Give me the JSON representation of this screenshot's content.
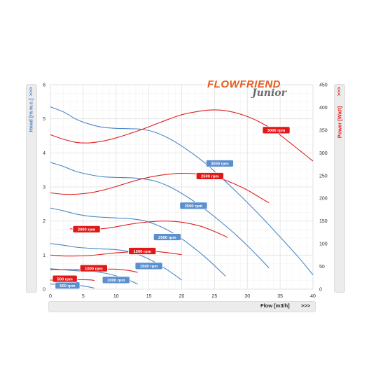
{
  "logo": {
    "line1": "FLOWFRIEND",
    "line2": "Junior",
    "brand_color": "#e85a1a"
  },
  "labels": {
    "y_left": "Head [m.w.c.]",
    "y_left_arrow": ">>>",
    "y_right": "Power [Watt]",
    "y_right_arrow": ">>>",
    "x": "Flow [m3/h]",
    "x_arrow": ">>>"
  },
  "colors": {
    "head": "#4a86c8",
    "power": "#e02020",
    "grid": "#e2e2e2"
  },
  "chart_data": {
    "type": "line",
    "xlabel": "Flow [m3/h]",
    "ylabel": "Head [m.w.c.]",
    "y2label": "Power [Watt]",
    "xlim": [
      0,
      40
    ],
    "ylim": [
      0,
      6
    ],
    "y2lim": [
      0,
      450
    ],
    "xticks": [
      0,
      5,
      10,
      15,
      20,
      25,
      30,
      35,
      40
    ],
    "yticks": [
      0,
      1,
      2,
      3,
      4,
      5,
      6
    ],
    "y2ticks": [
      0,
      50,
      100,
      150,
      200,
      250,
      300,
      350,
      400,
      450
    ],
    "grid": true,
    "head_series": [
      {
        "name": "3000 rpm",
        "points": [
          [
            0,
            5.35
          ],
          [
            2,
            5.2
          ],
          [
            4,
            4.98
          ],
          [
            6,
            4.84
          ],
          [
            8,
            4.75
          ],
          [
            10,
            4.72
          ],
          [
            12,
            4.71
          ],
          [
            14,
            4.69
          ],
          [
            16,
            4.6
          ],
          [
            18,
            4.43
          ],
          [
            20,
            4.2
          ],
          [
            22,
            3.93
          ],
          [
            24,
            3.63
          ],
          [
            26,
            3.28
          ],
          [
            28,
            2.92
          ],
          [
            30,
            2.54
          ],
          [
            32,
            2.15
          ],
          [
            34,
            1.74
          ],
          [
            36,
            1.32
          ],
          [
            38,
            0.89
          ],
          [
            40,
            0.42
          ]
        ]
      },
      {
        "name": "2500 rpm",
        "points": [
          [
            0,
            3.72
          ],
          [
            2,
            3.6
          ],
          [
            4,
            3.45
          ],
          [
            6,
            3.36
          ],
          [
            8,
            3.3
          ],
          [
            10,
            3.28
          ],
          [
            12,
            3.27
          ],
          [
            14,
            3.24
          ],
          [
            16,
            3.17
          ],
          [
            18,
            3.02
          ],
          [
            20,
            2.81
          ],
          [
            22,
            2.56
          ],
          [
            24,
            2.28
          ],
          [
            26,
            1.97
          ],
          [
            28,
            1.64
          ],
          [
            30,
            1.28
          ],
          [
            32,
            0.89
          ],
          [
            33.3,
            0.62
          ]
        ]
      },
      {
        "name": "2000 rpm",
        "points": [
          [
            0,
            2.38
          ],
          [
            2,
            2.3
          ],
          [
            4,
            2.2
          ],
          [
            6,
            2.14
          ],
          [
            8,
            2.11
          ],
          [
            10,
            2.09
          ],
          [
            12,
            2.07
          ],
          [
            14,
            2.02
          ],
          [
            16,
            1.9
          ],
          [
            18,
            1.72
          ],
          [
            20,
            1.48
          ],
          [
            22,
            1.19
          ],
          [
            24,
            0.87
          ],
          [
            26.7,
            0.38
          ]
        ]
      },
      {
        "name": "1500 rpm",
        "points": [
          [
            0,
            1.34
          ],
          [
            2,
            1.29
          ],
          [
            4,
            1.23
          ],
          [
            6,
            1.2
          ],
          [
            8,
            1.18
          ],
          [
            10,
            1.16
          ],
          [
            12,
            1.1
          ],
          [
            14,
            0.97
          ],
          [
            16,
            0.78
          ],
          [
            18,
            0.54
          ],
          [
            20,
            0.27
          ]
        ]
      },
      {
        "name": "1000 rpm",
        "points": [
          [
            0,
            0.6
          ],
          [
            2,
            0.57
          ],
          [
            4,
            0.54
          ],
          [
            6,
            0.52
          ],
          [
            8,
            0.48
          ],
          [
            10,
            0.39
          ],
          [
            12,
            0.26
          ],
          [
            13.3,
            0.15
          ]
        ]
      },
      {
        "name": "500 rpm",
        "points": [
          [
            0,
            0.15
          ],
          [
            2,
            0.14
          ],
          [
            4,
            0.12
          ],
          [
            6,
            0.06
          ],
          [
            6.7,
            0.03
          ]
        ]
      }
    ],
    "power_series": [
      {
        "name": "3000 rpm",
        "points": [
          [
            0,
            340
          ],
          [
            2,
            330
          ],
          [
            4,
            323
          ],
          [
            6,
            322
          ],
          [
            8,
            326
          ],
          [
            10,
            333
          ],
          [
            12,
            342
          ],
          [
            14,
            352
          ],
          [
            16,
            363
          ],
          [
            18,
            374
          ],
          [
            20,
            384
          ],
          [
            22,
            390
          ],
          [
            24,
            394
          ],
          [
            26,
            394
          ],
          [
            28,
            389
          ],
          [
            30,
            380
          ],
          [
            32,
            367
          ],
          [
            34,
            350
          ],
          [
            36,
            328
          ],
          [
            38,
            305
          ],
          [
            40,
            282
          ]
        ]
      },
      {
        "name": "2500 rpm",
        "points": [
          [
            0,
            212
          ],
          [
            2,
            209
          ],
          [
            4,
            209
          ],
          [
            6,
            212
          ],
          [
            8,
            218
          ],
          [
            10,
            226
          ],
          [
            12,
            235
          ],
          [
            14,
            243
          ],
          [
            16,
            249
          ],
          [
            18,
            253
          ],
          [
            20,
            255
          ],
          [
            22,
            254
          ],
          [
            24,
            250
          ],
          [
            26,
            243
          ],
          [
            28,
            232
          ],
          [
            30,
            218
          ],
          [
            32,
            201
          ],
          [
            33.3,
            190
          ]
        ]
      },
      {
        "name": "2000 rpm",
        "points": [
          [
            3,
            133
          ],
          [
            5,
            131
          ],
          [
            7,
            132
          ],
          [
            9,
            135
          ],
          [
            11,
            140
          ],
          [
            13,
            145
          ],
          [
            15,
            148
          ],
          [
            17,
            150
          ],
          [
            19,
            149
          ],
          [
            21,
            145
          ],
          [
            23,
            138
          ],
          [
            25,
            127
          ],
          [
            27,
            114
          ]
        ]
      },
      {
        "name": "1500 rpm",
        "points": [
          [
            0,
            75
          ],
          [
            2,
            73
          ],
          [
            4,
            73
          ],
          [
            6,
            74
          ],
          [
            8,
            77
          ],
          [
            10,
            80
          ],
          [
            12,
            82
          ],
          [
            14,
            83
          ],
          [
            16,
            83
          ],
          [
            18,
            80
          ],
          [
            20,
            76
          ]
        ]
      },
      {
        "name": "1000 rpm",
        "points": [
          [
            0,
            43
          ],
          [
            2,
            43
          ],
          [
            4,
            43
          ],
          [
            6,
            43.5
          ],
          [
            8,
            44
          ],
          [
            10,
            44
          ],
          [
            12,
            41
          ],
          [
            13.3,
            37
          ]
        ]
      },
      {
        "name": "500 rpm",
        "points": [
          [
            0,
            20
          ],
          [
            2,
            20.5
          ],
          [
            4,
            21
          ],
          [
            6,
            20.5
          ],
          [
            6.7,
            19
          ]
        ]
      }
    ],
    "head_labels": [
      {
        "text": "3000 rpm",
        "x": 25.8,
        "y": 3.69
      },
      {
        "text": "2500 rpm",
        "x": 21.8,
        "y": 2.45
      },
      {
        "text": "2000 rpm",
        "x": 17.8,
        "y": 1.53
      },
      {
        "text": "1500 rpm",
        "x": 15.0,
        "y": 0.68
      },
      {
        "text": "1000 rpm",
        "x": 10.0,
        "y": 0.27
      },
      {
        "text": "500 rpm",
        "x": 2.6,
        "y": 0.11
      }
    ],
    "power_labels": [
      {
        "text": "3000 rpm",
        "x": 34.4,
        "y": 350
      },
      {
        "text": "2500 rpm",
        "x": 24.3,
        "y": 249
      },
      {
        "text": "2000 rpm",
        "x": 5.5,
        "y": 132
      },
      {
        "text": "1500 rpm",
        "x": 14.0,
        "y": 84
      },
      {
        "text": "1000 rpm",
        "x": 6.6,
        "y": 46
      },
      {
        "text": "500 rpm",
        "x": 2.2,
        "y": 23
      }
    ]
  }
}
